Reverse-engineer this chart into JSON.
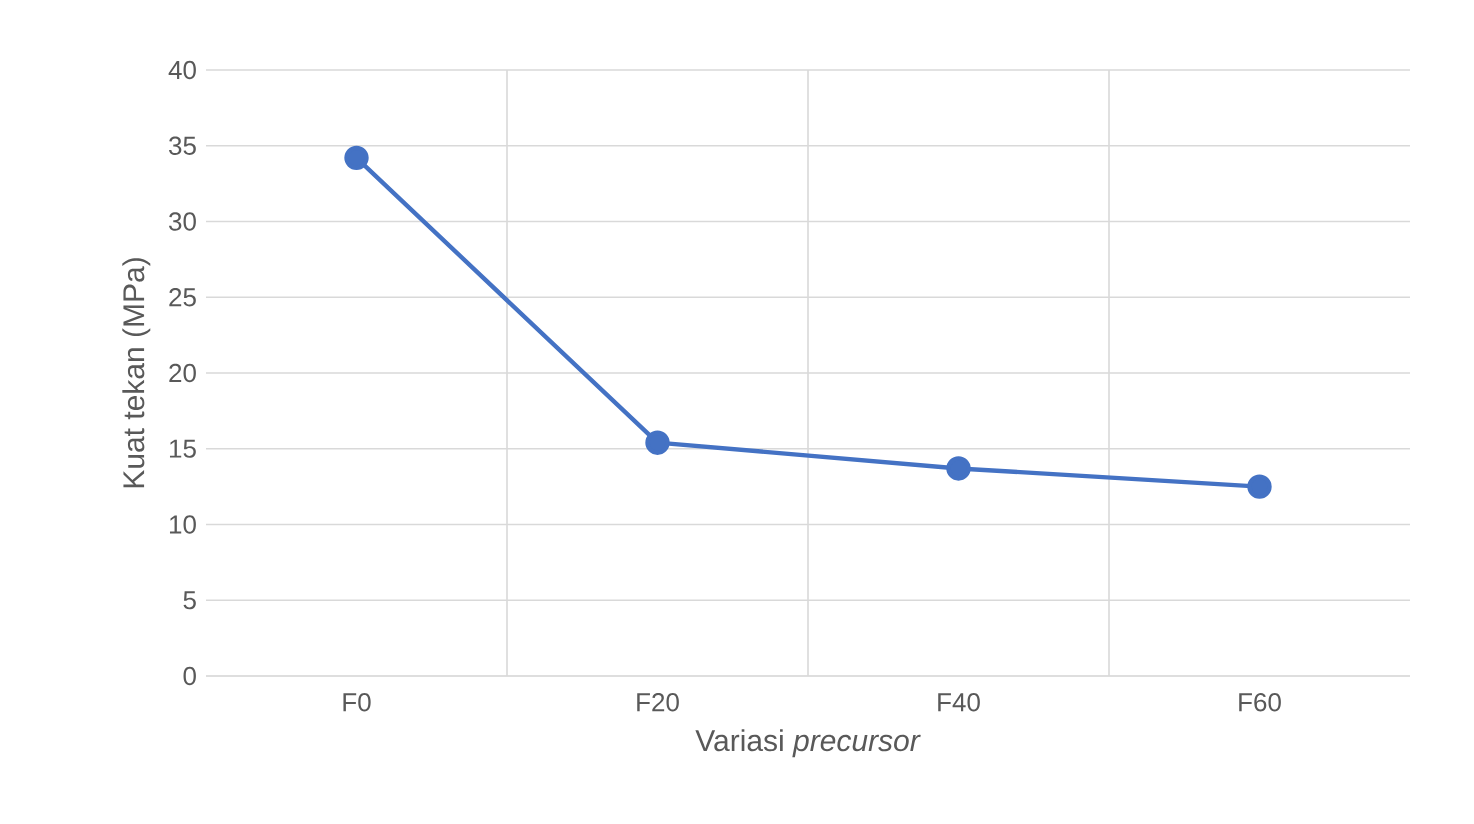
{
  "chart_data": {
    "type": "line",
    "xlabel": "Variasi *precursor*",
    "ylabel": "Kuat tekan (MPa)",
    "categories": [
      "F0",
      "F20",
      "F40",
      "F60"
    ],
    "series": [
      {
        "color": "#4472c4",
        "values": [
          34.2,
          15.4,
          13.7,
          12.5
        ]
      }
    ],
    "ylim": [
      0,
      40
    ],
    "yticks": [
      0,
      5,
      10,
      15,
      20,
      25,
      30,
      35,
      40
    ],
    "grid": true,
    "marker": "circle",
    "line_style": "solid"
  }
}
